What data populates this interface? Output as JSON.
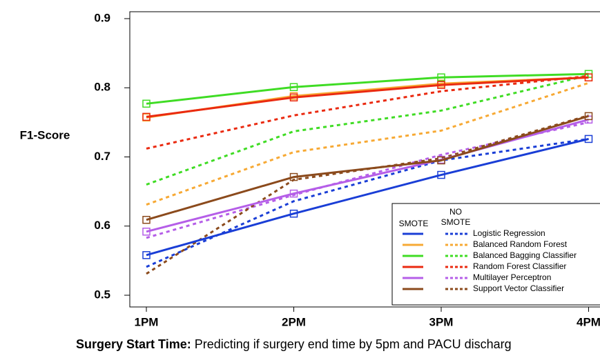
{
  "chart_data": {
    "type": "line",
    "y_label": "F1-Score",
    "caption_label": "Surgery Start Time:",
    "caption_text": "Predicting if surgery end time by 5pm and PACU discharg",
    "categories": [
      "1PM",
      "2PM",
      "3PM",
      "4PM"
    ],
    "ylim": [
      0.5,
      0.9
    ],
    "yticks": [
      0.5,
      0.6,
      0.7,
      0.8,
      0.9
    ],
    "legend": {
      "smote_label": "SMOTE",
      "no_smote_label": [
        "NO",
        "SMOTE"
      ],
      "position": "lower right"
    },
    "series": [
      {
        "name": "Logistic Regression",
        "color": "#1a3ed6",
        "values": [
          0.558,
          0.618,
          0.674,
          0.726
        ],
        "no_smote_values": [
          0.541,
          0.636,
          0.695,
          0.726
        ]
      },
      {
        "name": "Balanced Random Forest",
        "color": "#f7a934",
        "values": [
          0.757,
          0.788,
          0.806,
          0.815
        ],
        "no_smote_values": [
          0.631,
          0.707,
          0.738,
          0.807
        ]
      },
      {
        "name": "Balanced Bagging Classifier",
        "color": "#3fdc24",
        "values": [
          0.777,
          0.801,
          0.815,
          0.82
        ],
        "no_smote_values": [
          0.66,
          0.737,
          0.767,
          0.818
        ]
      },
      {
        "name": "Random Forest Classifier",
        "color": "#ea2a10",
        "values": [
          0.758,
          0.786,
          0.804,
          0.815
        ],
        "no_smote_values": [
          0.712,
          0.76,
          0.795,
          0.817
        ]
      },
      {
        "name": "Multilayer Perceptron",
        "color": "#b55ee8",
        "values": [
          0.592,
          0.647,
          0.696,
          0.754
        ],
        "no_smote_values": [
          0.583,
          0.645,
          0.703,
          0.75
        ]
      },
      {
        "name": "Support Vector Classifier",
        "color": "#8b4a1c",
        "values": [
          0.609,
          0.671,
          0.695,
          0.759
        ],
        "no_smote_values": [
          0.531,
          0.667,
          0.698,
          0.76
        ]
      }
    ]
  }
}
